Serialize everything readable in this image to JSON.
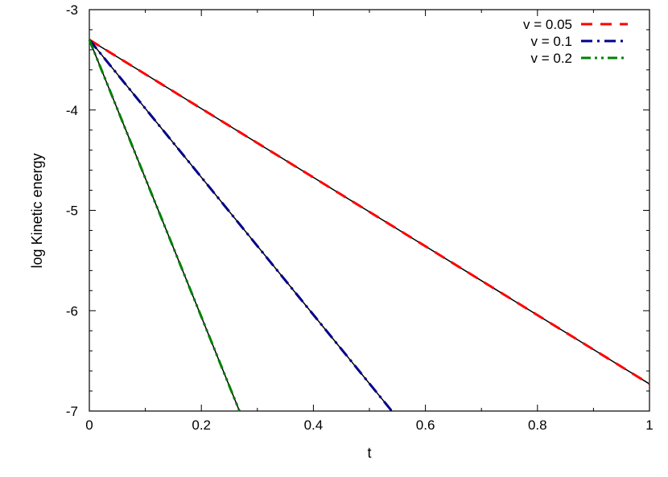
{
  "chart_data": {
    "type": "line",
    "title": "",
    "xlabel": "t",
    "ylabel": "log Kinetic energy",
    "xlim": [
      0,
      1
    ],
    "ylim": [
      -7,
      -3
    ],
    "x_ticks": [
      0,
      0.2,
      0.4,
      0.6,
      0.8,
      1
    ],
    "x_tick_labels": [
      "0",
      "0.2",
      "0.4",
      "0.6",
      "0.8",
      "1"
    ],
    "y_ticks": [
      -7,
      -6,
      -5,
      -4,
      -3
    ],
    "y_tick_labels": [
      "-7",
      "-6",
      "-5",
      "-4",
      "-3"
    ],
    "grid": false,
    "legend_position": "top-right",
    "series": [
      {
        "name": "v = 0.05",
        "color": "#ff0000",
        "dash": "dashed",
        "x": [
          0,
          1
        ],
        "y": [
          -3.3,
          -6.73
        ]
      },
      {
        "name": "v = 0.1",
        "color": "#00008b",
        "dash": "dash-dot",
        "x": [
          0,
          0.54
        ],
        "y": [
          -3.3,
          -7.0
        ]
      },
      {
        "name": "v = 0.2",
        "color": "#008000",
        "dash": "dash-dot-dot",
        "x": [
          0,
          0.268
        ],
        "y": [
          -3.3,
          -7.0
        ]
      }
    ],
    "reference_lines": [
      {
        "color": "#000000",
        "x": [
          0,
          1
        ],
        "y": [
          -3.3,
          -6.73
        ]
      },
      {
        "color": "#000000",
        "x": [
          0,
          0.54
        ],
        "y": [
          -3.3,
          -7.0
        ]
      },
      {
        "color": "#000000",
        "x": [
          0,
          0.268
        ],
        "y": [
          -3.3,
          -7.0
        ]
      }
    ]
  }
}
